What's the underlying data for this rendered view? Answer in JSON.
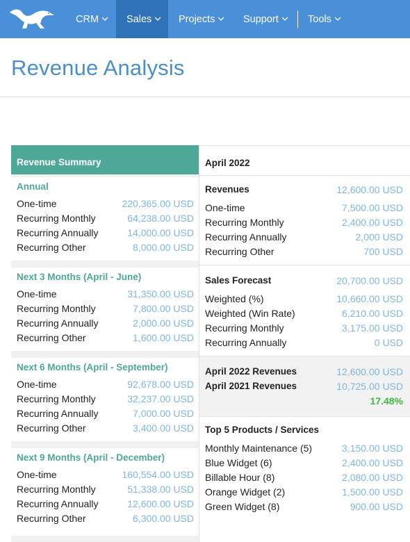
{
  "nav": {
    "logo": "dinosaur-logo",
    "items": [
      {
        "label": "CRM"
      },
      {
        "label": "Sales"
      },
      {
        "label": "Projects"
      },
      {
        "label": "Support"
      },
      {
        "label": "Tools"
      }
    ],
    "active": "Sales"
  },
  "page": {
    "title": "Revenue Analysis"
  },
  "summary": {
    "header": "Revenue Summary",
    "blocks": [
      {
        "title": "Annual",
        "rows": [
          {
            "label": "One-time",
            "value": "220,365.00 USD"
          },
          {
            "label": "Recurring Monthly",
            "value": "64,238.00 USD"
          },
          {
            "label": "Recurring Annually",
            "value": "14,000.00 USD"
          },
          {
            "label": "Recurring Other",
            "value": "8,000.00 USD"
          }
        ]
      },
      {
        "title": "Next 3 Months (April - June)",
        "rows": [
          {
            "label": "One-time",
            "value": "31,350.00 USD"
          },
          {
            "label": "Recurring Monthly",
            "value": "7,800.00 USD"
          },
          {
            "label": "Recurring Annually",
            "value": "2,000.00 USD"
          },
          {
            "label": "Recurring Other",
            "value": "1,600.00 USD"
          }
        ]
      },
      {
        "title": "Next 6 Months (April - September)",
        "rows": [
          {
            "label": "One-time",
            "value": "92,678.00 USD"
          },
          {
            "label": "Recurring Monthly",
            "value": "32,237.00 USD"
          },
          {
            "label": "Recurring Annually",
            "value": "7,000.00 USD"
          },
          {
            "label": "Recurring Other",
            "value": "3,400.00 USD"
          }
        ]
      },
      {
        "title": "Next 9 Months (April - December)",
        "rows": [
          {
            "label": "One-time",
            "value": "160,554.00 USD"
          },
          {
            "label": "Recurring Monthly",
            "value": "51,338.00 USD"
          },
          {
            "label": "Recurring Annually",
            "value": "12,600.00 USD"
          },
          {
            "label": "Recurring Other",
            "value": "6,300.00 USD"
          }
        ]
      }
    ]
  },
  "month": {
    "header": "April 2022",
    "revenues": {
      "title": "Revenues",
      "total": "12,600.00 USD",
      "rows": [
        {
          "label": "One-time",
          "value": "7,500.00 USD"
        },
        {
          "label": "Recurring Monthly",
          "value": "2,400.00 USD"
        },
        {
          "label": "Recurring Annually",
          "value": "2,000 USD"
        },
        {
          "label": "Recurring Other",
          "value": "700 USD"
        }
      ]
    },
    "forecast": {
      "title": "Sales Forecast",
      "total": "20,700.00 USD",
      "rows": [
        {
          "label": "Weighted (%)",
          "value": "10,660.00 USD"
        },
        {
          "label": "Weighted (Win Rate)",
          "value": "6,210.00 USD"
        },
        {
          "label": "Recurring Monthly",
          "value": "3,175.00 USD"
        },
        {
          "label": "Recurring Annually",
          "value": "0 USD"
        }
      ]
    },
    "comparison": {
      "current_label": "April 2022 Revenues",
      "current_value": "12,600.00 USD",
      "previous_label": "April 2021 Revenues",
      "previous_value": "10,725.00 USD",
      "change": "17.48%",
      "change_color": "#3fb93f"
    },
    "top_products": {
      "title": "Top 5 Products / Services",
      "rows": [
        {
          "label": "Monthly Maintenance (5)",
          "value": "3,150.00 USD"
        },
        {
          "label": "Blue Widget (6)",
          "value": "2,400.00 USD"
        },
        {
          "label": "Billable Hour (8)",
          "value": "2,080.00 USD"
        },
        {
          "label": "Orange Widget (2)",
          "value": "1,500.00 USD"
        },
        {
          "label": "Green Widget (8)",
          "value": "900.00 USD"
        }
      ]
    }
  },
  "colors": {
    "nav_bg": "#4a90d9",
    "nav_active": "#2f72b8",
    "teal": "#4ea898",
    "value_blue": "#7fb6e4",
    "title_blue": "#4a8fc9"
  }
}
